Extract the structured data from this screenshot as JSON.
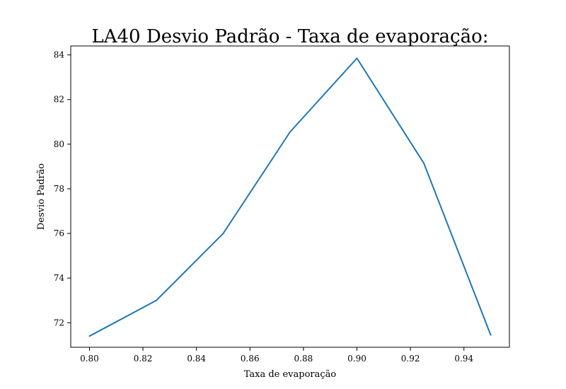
{
  "chart_data": {
    "type": "line",
    "title": "LA40 Desvio Padrão - Taxa de evaporação:",
    "xlabel": "Taxa de evaporação",
    "ylabel": "Desvio Padrão",
    "xlim": [
      0.793,
      0.957
    ],
    "ylim": [
      70.9,
      84.4
    ],
    "xticks": [
      0.8,
      0.82,
      0.84,
      0.86,
      0.88,
      0.9,
      0.92,
      0.94
    ],
    "xtick_labels": [
      "0.80",
      "0.82",
      "0.84",
      "0.86",
      "0.88",
      "0.90",
      "0.92",
      "0.94"
    ],
    "yticks": [
      72,
      74,
      76,
      78,
      80,
      82,
      84
    ],
    "ytick_labels": [
      "72",
      "74",
      "76",
      "78",
      "80",
      "82",
      "84"
    ],
    "grid": false,
    "series": [
      {
        "color": "#1f77b4",
        "x": [
          0.8,
          0.825,
          0.85,
          0.875,
          0.9,
          0.925,
          0.95
        ],
        "y": [
          71.4,
          73.0,
          76.0,
          80.55,
          83.85,
          79.15,
          71.45
        ]
      }
    ]
  }
}
